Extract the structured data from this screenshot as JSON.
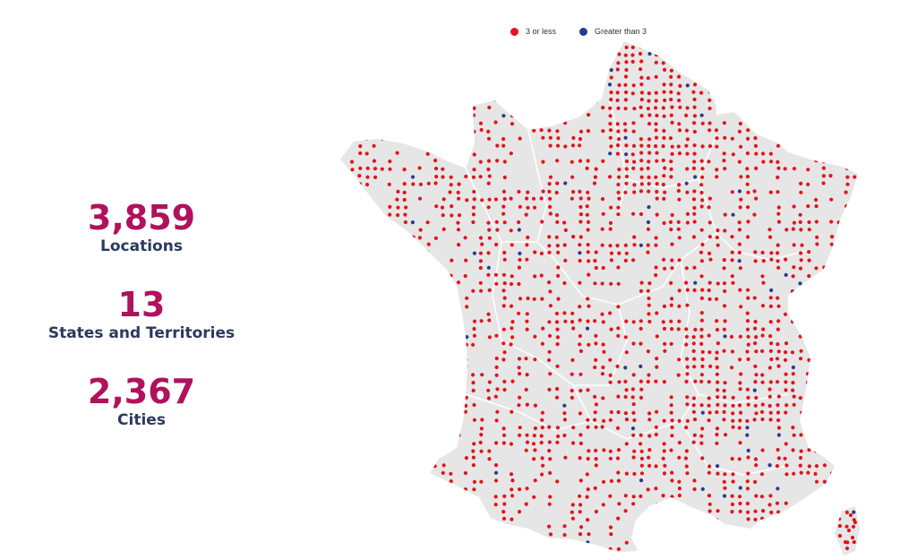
{
  "stats": [
    {
      "value": "3,859",
      "label": "Locations"
    },
    {
      "value": "13",
      "label": "States and Territories"
    },
    {
      "value": "2,367",
      "label": "Cities"
    }
  ],
  "legend": [
    {
      "label": "3 or less",
      "color": "#e3131b"
    },
    {
      "label": "Greater than 3",
      "color": "#2b3a8c"
    }
  ],
  "colors": {
    "value": "#b0125c",
    "label": "#2b3a5c",
    "land": "#e6e6e6",
    "border": "#ffffff"
  }
}
